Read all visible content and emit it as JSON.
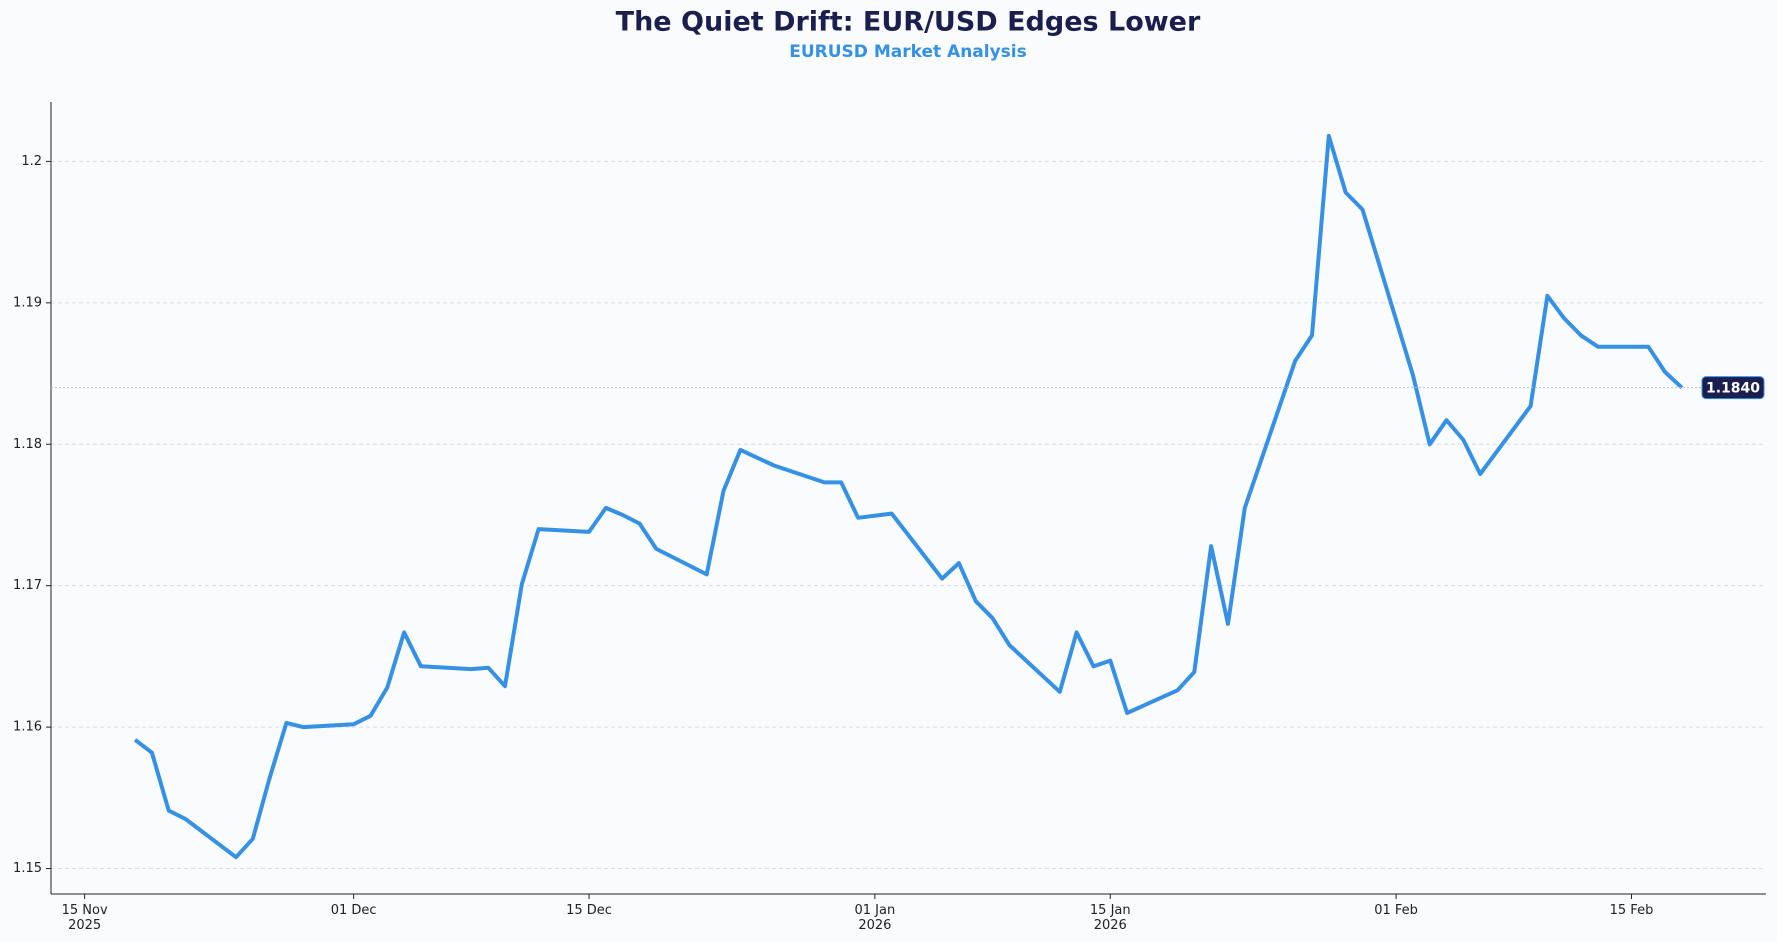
{
  "chart_data": {
    "type": "line",
    "title": "The Quiet Drift: EUR/USD Edges Lower",
    "subtitle": "EURUSD Market Analysis",
    "x": [
      "2025-11-18",
      "2025-11-19",
      "2025-11-20",
      "2025-11-21",
      "2025-11-24",
      "2025-11-25",
      "2025-11-26",
      "2025-11-27",
      "2025-11-28",
      "2025-12-01",
      "2025-12-02",
      "2025-12-03",
      "2025-12-04",
      "2025-12-05",
      "2025-12-08",
      "2025-12-09",
      "2025-12-10",
      "2025-12-11",
      "2025-12-12",
      "2025-12-15",
      "2025-12-16",
      "2025-12-17",
      "2025-12-18",
      "2025-12-19",
      "2025-12-22",
      "2025-12-23",
      "2025-12-24",
      "2025-12-26",
      "2025-12-29",
      "2025-12-30",
      "2025-12-31",
      "2026-01-02",
      "2026-01-05",
      "2026-01-06",
      "2026-01-07",
      "2026-01-08",
      "2026-01-09",
      "2026-01-12",
      "2026-01-13",
      "2026-01-14",
      "2026-01-15",
      "2026-01-16",
      "2026-01-19",
      "2026-01-20",
      "2026-01-21",
      "2026-01-22",
      "2026-01-23",
      "2026-01-26",
      "2026-01-27",
      "2026-01-28",
      "2026-01-29",
      "2026-01-30",
      "2026-02-02",
      "2026-02-03",
      "2026-02-04",
      "2026-02-05",
      "2026-02-06",
      "2026-02-09",
      "2026-02-10",
      "2026-02-11",
      "2026-02-12",
      "2026-02-13",
      "2026-02-16",
      "2026-02-17",
      "2026-02-18"
    ],
    "series": [
      {
        "name": "EURUSD",
        "color": "#3690e3",
        "values": [
          1.1591,
          1.1582,
          1.1541,
          1.1535,
          1.1508,
          1.1521,
          1.1564,
          1.1603,
          1.16,
          1.1602,
          1.1608,
          1.1628,
          1.1667,
          1.1643,
          1.1641,
          1.1642,
          1.1629,
          1.1701,
          1.174,
          1.1738,
          1.1755,
          1.175,
          1.1744,
          1.1726,
          1.1708,
          1.1767,
          1.1796,
          1.1785,
          1.1773,
          1.1773,
          1.1748,
          1.1751,
          1.1705,
          1.1716,
          1.1689,
          1.1677,
          1.1658,
          1.1625,
          1.1667,
          1.1643,
          1.1647,
          1.161,
          1.1626,
          1.1639,
          1.1728,
          1.1673,
          1.1755,
          1.1859,
          1.1877,
          1.2018,
          1.1978,
          1.1966,
          1.1849,
          1.18,
          1.1817,
          1.1803,
          1.1779,
          1.1827,
          1.1905,
          1.1889,
          1.1877,
          1.1869,
          1.1869,
          1.1851,
          1.184
        ]
      }
    ],
    "xlim": [
      "2025-11-13",
      "2026-02-23"
    ],
    "ylim": [
      1.1482,
      1.2042
    ],
    "xticks": [
      {
        "value": "2025-11-15",
        "label": "15 Nov\n2025"
      },
      {
        "value": "2025-12-01",
        "label": "01 Dec"
      },
      {
        "value": "2025-12-15",
        "label": "15 Dec"
      },
      {
        "value": "2026-01-01",
        "label": "01 Jan\n2026"
      },
      {
        "value": "2026-01-15",
        "label": "15 Jan\n2026"
      },
      {
        "value": "2026-02-01",
        "label": "01 Feb"
      },
      {
        "value": "2026-02-15",
        "label": "15 Feb"
      }
    ],
    "yticks": [
      1.15,
      1.16,
      1.17,
      1.18,
      1.19,
      1.2
    ],
    "grid": true,
    "last_value": {
      "value": 1.184,
      "label": "1.1840"
    }
  }
}
